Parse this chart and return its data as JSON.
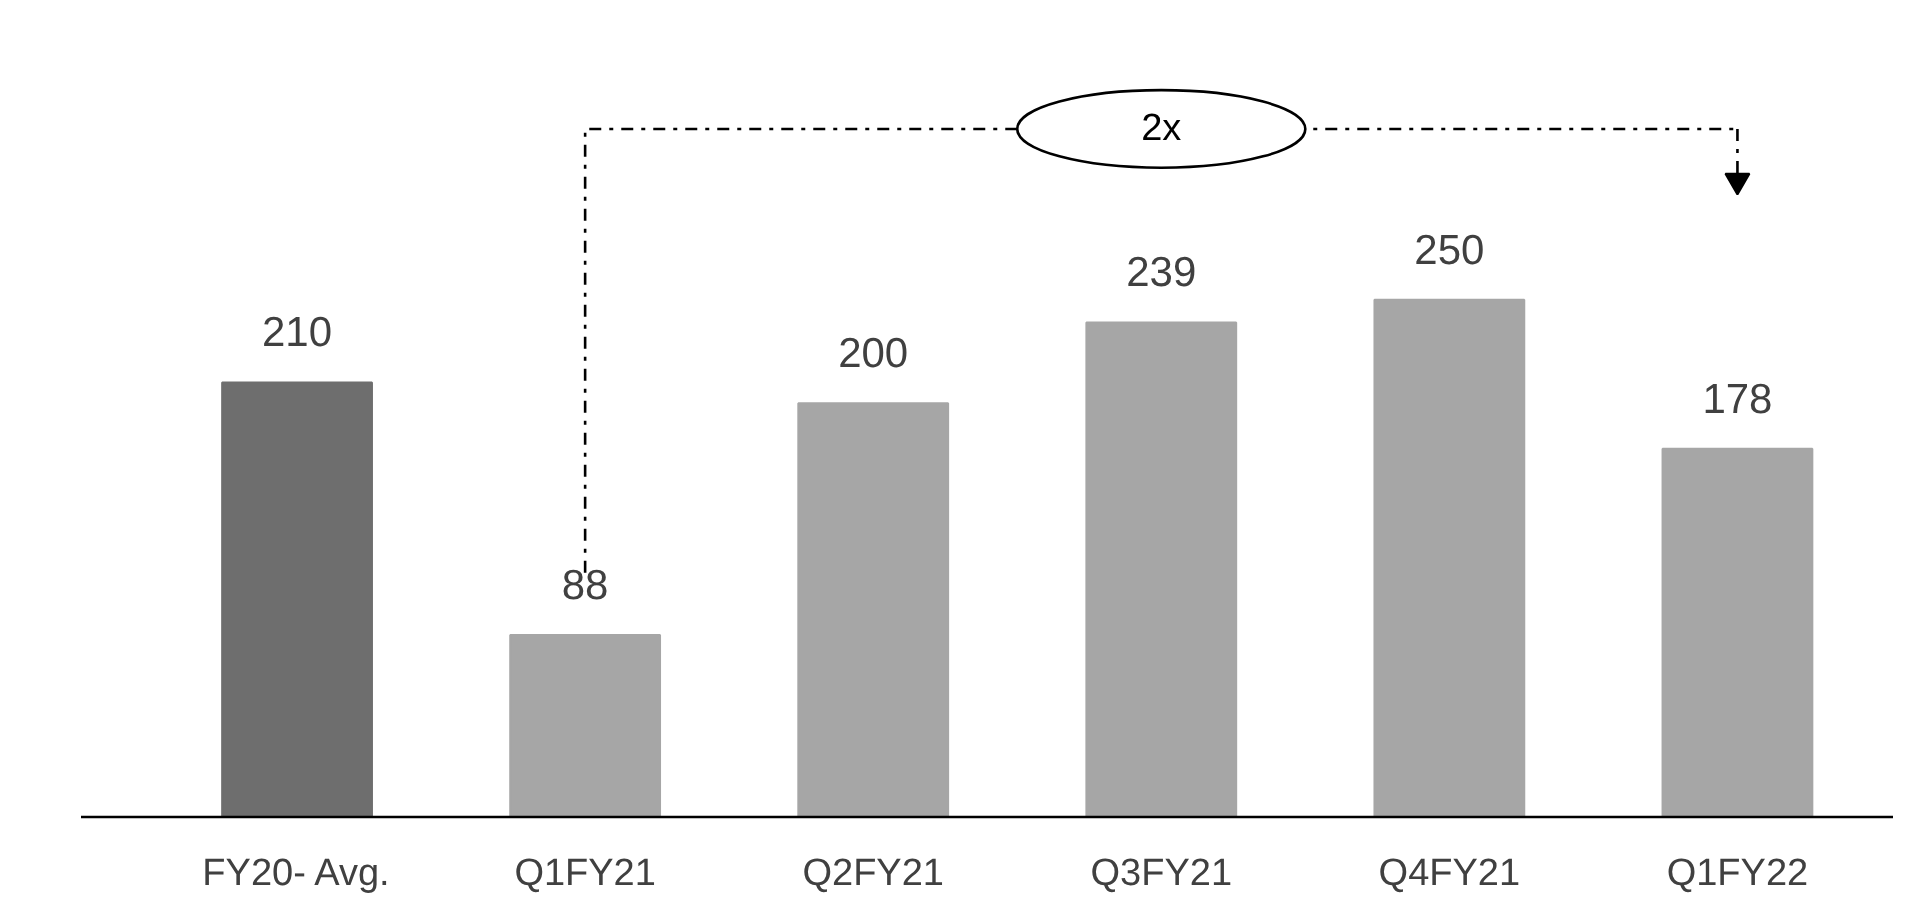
{
  "chart_data": {
    "type": "bar",
    "categories": [
      "FY20- Avg.",
      "Q1FY21",
      "Q2FY21",
      "Q3FY21",
      "Q4FY21",
      "Q1FY22"
    ],
    "values": [
      210,
      88,
      200,
      239,
      250,
      178
    ],
    "colors": [
      "#6e6e6e",
      "#a6a6a6",
      "#a6a6a6",
      "#a6a6a6",
      "#a6a6a6",
      "#a6a6a6"
    ],
    "data_labels": true,
    "annotations": [
      "2x"
    ],
    "grid": false
  }
}
